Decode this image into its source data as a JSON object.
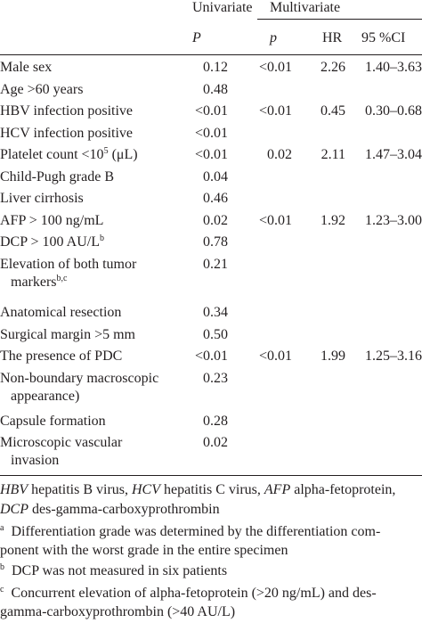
{
  "header": {
    "univariate": "Univariate",
    "multivariate": "Multivariate",
    "p_uni": "P",
    "p_multi": "p",
    "hr": "HR",
    "ci": "95 %CI"
  },
  "rows": [
    {
      "label": "Male sex",
      "uni": "0.12",
      "mp": "<0.01",
      "hr": "2.26",
      "ci": "1.40–3.63"
    },
    {
      "label": "Age >60 years",
      "uni": "0.48",
      "mp": "",
      "hr": "",
      "ci": ""
    },
    {
      "label": "HBV infection positive",
      "uni": "<0.01",
      "mp": "<0.01",
      "hr": "0.45",
      "ci": "0.30–0.68"
    },
    {
      "label": "HCV infection positive",
      "uni": "<0.01",
      "mp": "",
      "hr": "",
      "ci": ""
    },
    {
      "label_pre": "Platelet count <10",
      "label_sup": "5",
      "label_post": " (μL)",
      "uni": "<0.01",
      "mp": "0.02",
      "hr": "2.11",
      "ci": "1.47–3.04"
    },
    {
      "label": "Child-Pugh grade B",
      "uni": "0.04",
      "mp": "",
      "hr": "",
      "ci": ""
    },
    {
      "label": "Liver cirrhosis",
      "uni": "0.46",
      "mp": "",
      "hr": "",
      "ci": ""
    },
    {
      "label": "AFP > 100 ng/mL",
      "uni": "0.02",
      "mp": "<0.01",
      "hr": "1.92",
      "ci": "1.23–3.00"
    },
    {
      "label": "DCP > 100 AU/L",
      "label_sup": "b",
      "uni": "0.78",
      "mp": "",
      "hr": "",
      "ci": ""
    },
    {
      "label": "Elevation of both tumor",
      "label2": "markers",
      "label2_sup": "b,c",
      "uni": "0.21",
      "mp": "",
      "hr": "",
      "ci": ""
    },
    {
      "label": "Anatomical resection",
      "uni": "0.34",
      "mp": "",
      "hr": "",
      "ci": ""
    },
    {
      "label": "Surgical margin >5 mm",
      "uni": "0.50",
      "mp": "",
      "hr": "",
      "ci": ""
    },
    {
      "label": "The presence of PDC",
      "uni": "<0.01",
      "mp": "<0.01",
      "hr": "1.99",
      "ci": "1.25–3.16"
    },
    {
      "label": "Non-boundary macroscopic",
      "label2": "appearance)",
      "uni": "0.23",
      "mp": "",
      "hr": "",
      "ci": ""
    },
    {
      "label": "Capsule formation",
      "uni": "0.28",
      "mp": "",
      "hr": "",
      "ci": ""
    },
    {
      "label": "Microscopic vascular",
      "label2": "invasion",
      "uni": "0.02",
      "mp": "",
      "hr": "",
      "ci": ""
    }
  ],
  "footnotes": {
    "abbrev_l1_a": "HBV",
    "abbrev_l1_b": " hepatitis B virus, ",
    "abbrev_l1_c": "HCV",
    "abbrev_l1_d": " hepatitis C virus, ",
    "abbrev_l1_e": "AFP",
    "abbrev_l1_f": " alpha-fetoprotein,",
    "abbrev_l2_a": "DCP",
    "abbrev_l2_b": " des-gamma-carboxyprothrombin",
    "a_mark": "a",
    "a_l1": "Differentiation grade was determined by the differentiation com-",
    "a_l2": "ponent with the worst grade in the entire specimen",
    "b_mark": "b",
    "b_l1": "DCP was not measured in six patients",
    "c_mark": "c",
    "c_l1": "Concurrent elevation of alpha-fetoprotein (>20 ng/mL) and des-",
    "c_l2": "gamma-carboxyprothrombin (>40 AU/L)"
  }
}
